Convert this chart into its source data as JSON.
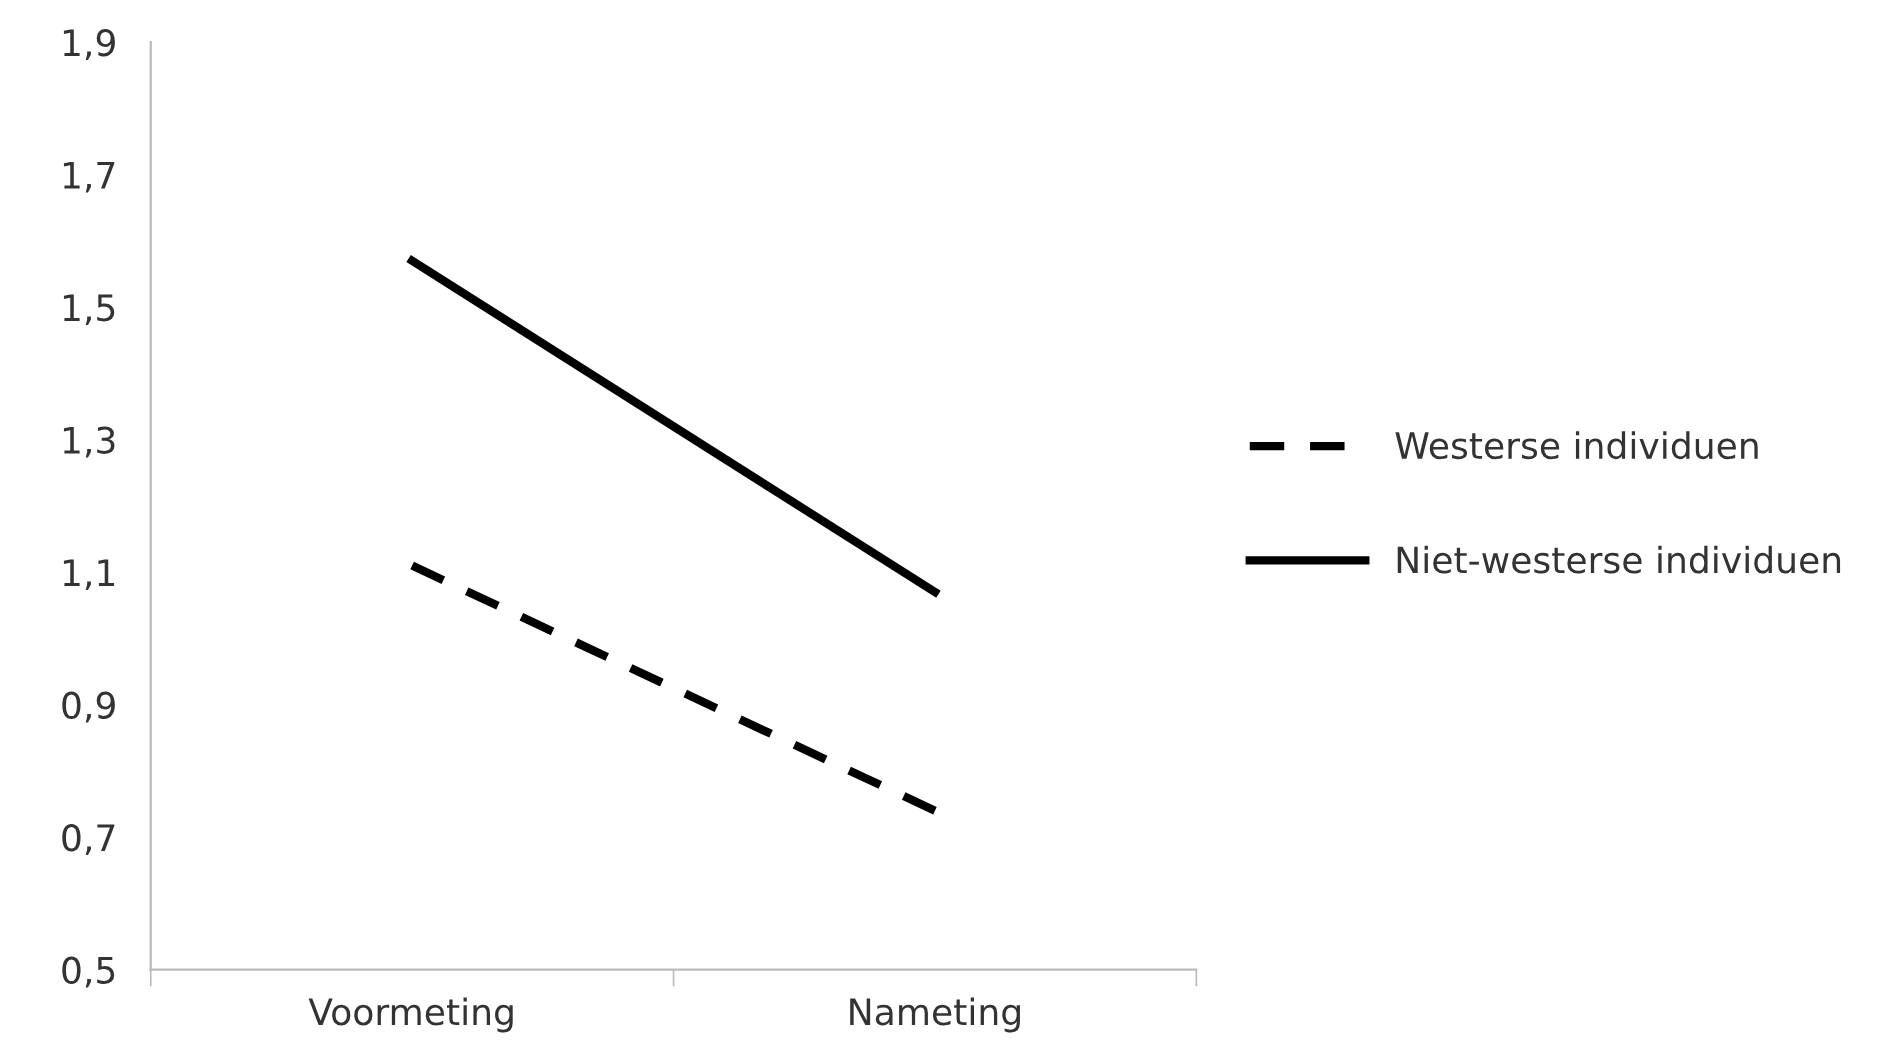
{
  "chart_data": {
    "type": "line",
    "categories": [
      "Voormeting",
      "Nameting"
    ],
    "series": [
      {
        "name": "Westerse individuen",
        "color": "#000000",
        "values": [
          1.11,
          0.74
        ],
        "line_style": "dashed"
      },
      {
        "name": "Niet-westerse individuen",
        "color": "#000000",
        "values": [
          1.57,
          1.07
        ],
        "line_style": "solid"
      }
    ],
    "ylim": [
      0.5,
      1.9
    ],
    "yticks": [
      {
        "value": 0.5,
        "label": "0,5"
      },
      {
        "value": 0.7,
        "label": "0,7"
      },
      {
        "value": 0.9,
        "label": "0,9"
      },
      {
        "value": 1.1,
        "label": "1,1"
      },
      {
        "value": 1.3,
        "label": "1,3"
      },
      {
        "value": 1.5,
        "label": "1,5"
      },
      {
        "value": 1.7,
        "label": "1,7"
      },
      {
        "value": 1.9,
        "label": "1,9"
      }
    ],
    "grid": false,
    "legend": "right",
    "marker": "none"
  }
}
